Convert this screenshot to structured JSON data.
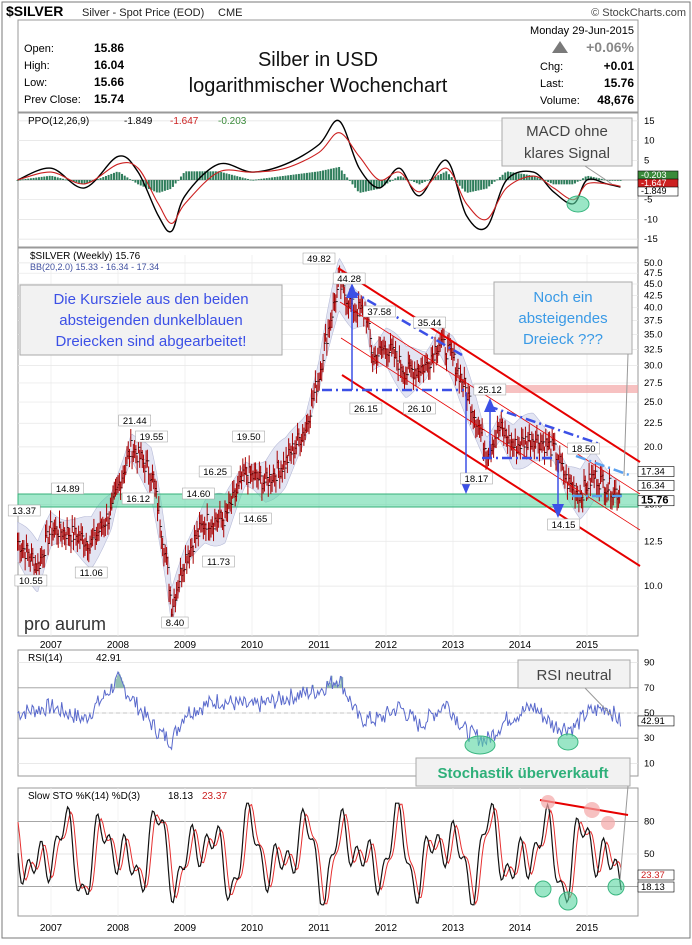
{
  "header": {
    "symbol": "$SILVER",
    "description": "Silver - Spot Price (EOD)",
    "exchange": "CME",
    "source": "© StockCharts.com",
    "date": "Monday 29-Jun-2015",
    "labels": {
      "open": "Open:",
      "high": "High:",
      "low": "Low:",
      "prev_close": "Prev Close:",
      "chg": "Chg:",
      "last": "Last:",
      "volume": "Volume:"
    },
    "open": "15.86",
    "high": "16.04",
    "low": "15.66",
    "prev_close": "15.74",
    "pct_change": "+0.06%",
    "chg": "+0.01",
    "last": "15.76",
    "volume": "48,676",
    "title_line1": "Silber in USD",
    "title_line2": "logarithmischer Wochenchart"
  },
  "colors": {
    "accent_blue": "#3c50e6",
    "channel_red": "#e60000",
    "highlight_green": "#56d6a0",
    "price_bar": "#b00000"
  },
  "chart_data": [
    {
      "type": "line",
      "panel": "ppo",
      "legend": [
        "PPO(12,26,9)",
        "-1.849",
        "-1.647",
        "-0.203"
      ],
      "yticks": [
        15,
        10,
        5,
        0,
        -5,
        -10,
        -15
      ],
      "ylim": [
        -17,
        17
      ],
      "right_labels": [
        "-0.203",
        "-1.647",
        "-1.849"
      ],
      "x": [
        2006.5,
        2007.0,
        2007.5,
        2008.0,
        2008.3,
        2008.6,
        2008.8,
        2009.0,
        2009.5,
        2010.0,
        2010.5,
        2011.0,
        2011.3,
        2011.6,
        2011.9,
        2012.2,
        2012.5,
        2012.9,
        2013.2,
        2013.5,
        2013.8,
        2014.2,
        2014.5,
        2014.8,
        2015.0,
        2015.3,
        2015.5
      ],
      "series": [
        {
          "values": [
            0,
            3,
            -2,
            6,
            2,
            -9,
            -13,
            -4,
            4,
            2,
            4,
            9,
            15,
            3,
            -2,
            3,
            -4,
            5,
            -9,
            -12,
            0,
            2,
            -3,
            -6,
            0,
            -1,
            -1.8
          ]
        },
        {
          "values": [
            0,
            2,
            -1,
            4,
            3,
            -6,
            -11,
            -6,
            2,
            2,
            3,
            7,
            12,
            6,
            0,
            2,
            -3,
            3,
            -6,
            -10,
            -2,
            1,
            -2,
            -5,
            -1,
            -1,
            -1.6
          ]
        }
      ],
      "annotation": "MACD ohne klares Signal"
    },
    {
      "type": "line",
      "panel": "price",
      "log_scale": true,
      "legend": [
        "$SILVER (Weekly) 15.76",
        "BB(20,2.0) 15.33 - 16.34 - 17.34"
      ],
      "ylim": [
        7.8,
        52
      ],
      "yticks": [
        50.0,
        47.5,
        45.0,
        42.5,
        40.0,
        37.5,
        35.0,
        32.5,
        30.0,
        27.5,
        25.0,
        22.5,
        20.0,
        17.5,
        15.0,
        12.5,
        10.0
      ],
      "right_labels": [
        "17.34",
        "16.34",
        "15.76"
      ],
      "x": [
        2006.5,
        2006.8,
        2007.0,
        2007.3,
        2007.6,
        2007.9,
        2008.2,
        2008.5,
        2008.8,
        2009.0,
        2009.3,
        2009.6,
        2009.9,
        2010.2,
        2010.5,
        2010.8,
        2011.0,
        2011.3,
        2011.5,
        2011.7,
        2011.8,
        2012.0,
        2012.3,
        2012.6,
        2012.8,
        2013.0,
        2013.3,
        2013.5,
        2013.7,
        2013.9,
        2014.2,
        2014.5,
        2014.7,
        2014.9,
        2015.1,
        2015.3,
        2015.5
      ],
      "values": [
        12.5,
        11.0,
        13.3,
        13.0,
        12.4,
        14.5,
        20.0,
        17.5,
        9.0,
        11.5,
        13.8,
        14.0,
        17.5,
        16.8,
        18.5,
        22.0,
        28.5,
        45.0,
        40.0,
        39.0,
        31.0,
        33.0,
        29.0,
        30.0,
        34.0,
        31.0,
        24.0,
        19.5,
        22.0,
        20.0,
        21.0,
        19.8,
        16.8,
        15.8,
        17.3,
        16.5,
        15.8
      ],
      "price_labels": [
        "49.82",
        "44.28",
        "37.58",
        "35.44",
        "26.15",
        "26.10",
        "25.12",
        "18.17",
        "18.50",
        "14.15",
        "21.44",
        "19.55",
        "16.25",
        "19.50",
        "14.89",
        "16.12",
        "14.60",
        "14.65",
        "13.37",
        "10.55",
        "11.06",
        "11.73",
        "8.40"
      ],
      "annotations": [
        "Die Kursziele aus den beiden absteigenden dunkelblauen Dreiecken sind abgearbeitet!",
        "Noch ein absteigendes Dreieck ???"
      ],
      "watermark": "pro aurum",
      "xticks": [
        "2007",
        "2008",
        "2009",
        "2010",
        "2011",
        "2012",
        "2013",
        "2014",
        "2015"
      ]
    },
    {
      "type": "line",
      "panel": "rsi",
      "legend": [
        "RSI(14)",
        "42.91"
      ],
      "yticks": [
        90,
        70,
        50,
        30,
        10
      ],
      "ylim": [
        0,
        100
      ],
      "right_labels": [
        "42.91"
      ],
      "x": [
        2006.5,
        2007.0,
        2007.5,
        2008.0,
        2008.3,
        2008.6,
        2008.8,
        2009.0,
        2009.5,
        2010.0,
        2010.5,
        2011.0,
        2011.3,
        2011.6,
        2011.9,
        2012.2,
        2012.5,
        2012.9,
        2013.2,
        2013.5,
        2013.8,
        2014.2,
        2014.5,
        2014.8,
        2015.0,
        2015.3,
        2015.5
      ],
      "values": [
        50,
        55,
        45,
        76,
        55,
        35,
        28,
        50,
        60,
        55,
        62,
        68,
        78,
        45,
        45,
        55,
        40,
        58,
        35,
        28,
        45,
        55,
        40,
        38,
        50,
        55,
        43
      ],
      "annotation": "RSI neutral"
    },
    {
      "type": "line",
      "panel": "stochastic",
      "legend": [
        "Slow STO %K(14) %D(3)",
        "18.13",
        "23.37"
      ],
      "yticks": [
        80,
        50,
        20
      ],
      "ylim": [
        0,
        100
      ],
      "right_labels": [
        "23.37",
        "18.13"
      ],
      "annotation": "Stochastik überverkauft",
      "xticks": [
        "2007",
        "2008",
        "2009",
        "2010",
        "2011",
        "2012",
        "2013",
        "2014",
        "2015"
      ]
    }
  ]
}
